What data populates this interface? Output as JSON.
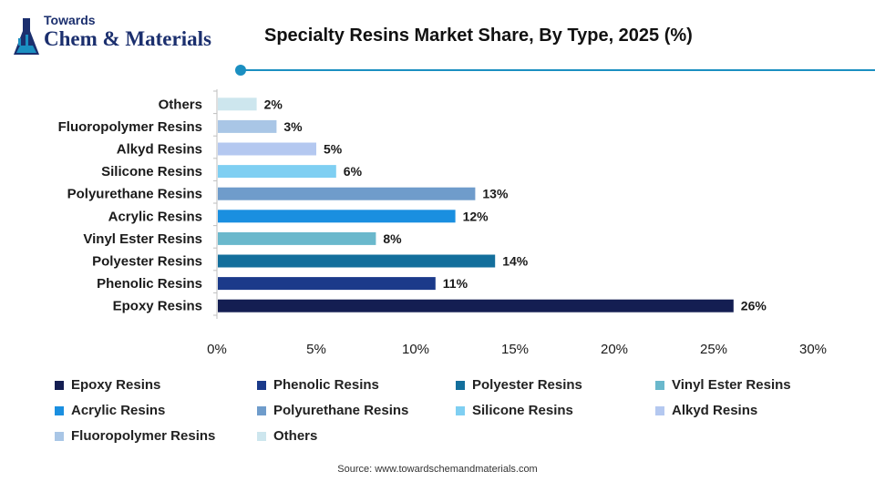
{
  "logo": {
    "line1": "Towards",
    "line2": "Chem & Materials",
    "icon": "flask-icon",
    "color": "#1b2f6e"
  },
  "header": {
    "title": "Specialty Resins Market Share, By Type, 2025 (%)",
    "accent": "#1b8fc1"
  },
  "chart_data": {
    "type": "bar",
    "orientation": "horizontal",
    "title": "Specialty Resins Market Share, By Type, 2025 (%)",
    "xlabel": "",
    "ylabel": "",
    "xlim": [
      0,
      30
    ],
    "x_ticks": [
      "0%",
      "5%",
      "10%",
      "15%",
      "20%",
      "25%",
      "30%"
    ],
    "x_tick_values": [
      0,
      5,
      10,
      15,
      20,
      25,
      30
    ],
    "grid": false,
    "legend_position": "bottom",
    "categories": [
      "Epoxy Resins",
      "Phenolic Resins",
      "Polyester Resins",
      "Vinyl Ester Resins",
      "Acrylic Resins",
      "Polyurethane Resins",
      "Silicone Resins",
      "Alkyd Resins",
      "Fluoropolymer Resins",
      "Others"
    ],
    "values": [
      26,
      11,
      14,
      8,
      12,
      13,
      6,
      5,
      3,
      2
    ],
    "data_labels": [
      "26%",
      "11%",
      "14%",
      "8%",
      "12%",
      "13%",
      "6%",
      "5%",
      "3%",
      "2%"
    ],
    "colors": [
      "#141e52",
      "#1b3a8a",
      "#136f9c",
      "#6ab8cc",
      "#1a8fe0",
      "#6f9ccb",
      "#7fcff2",
      "#b4c8f0",
      "#a9c6e6",
      "#cde6ee"
    ]
  },
  "footer": {
    "source": "Source: www.towardschemandmaterials.com"
  }
}
